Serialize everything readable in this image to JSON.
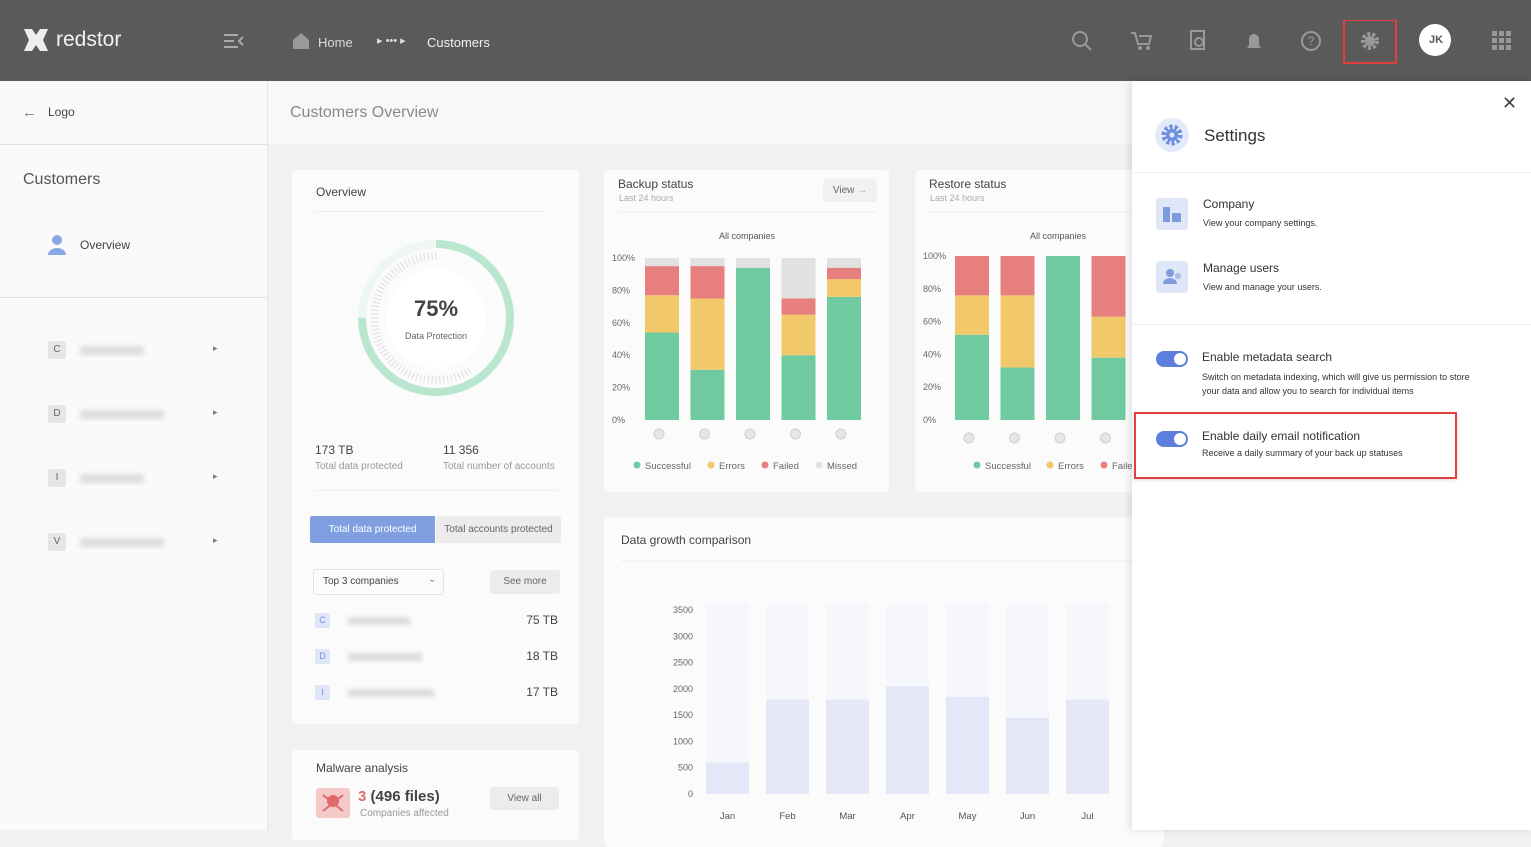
{
  "header": {
    "logo": "redstor",
    "breadcrumb": [
      "Home",
      "Customers"
    ],
    "avatar": "JK"
  },
  "sidebar": {
    "back": "Logo",
    "section": "Customers",
    "nav": "Overview",
    "items": [
      "C",
      "D",
      "I",
      "V"
    ]
  },
  "page_title": "Customers Overview",
  "overview": {
    "title": "Overview",
    "stats": [
      {
        "value": "173 TB",
        "label": "Total data protected"
      },
      {
        "value": "11 356",
        "label": "Total number of accounts"
      }
    ],
    "tabs": [
      "Total data protected",
      "Total accounts protected"
    ],
    "dropdown": "Top 3 companies",
    "see_more": "See more",
    "top": [
      {
        "letter": "C",
        "value": "75 TB"
      },
      {
        "letter": "D",
        "value": "18 TB"
      },
      {
        "letter": "I",
        "value": "17 TB"
      }
    ]
  },
  "malware": {
    "title": "Malware analysis",
    "count": "3",
    "files": "(496 files)",
    "caption": "Companies affected",
    "action": "View all"
  },
  "chart_data": [
    {
      "type": "donut",
      "values": [
        75
      ],
      "value_labels": [
        "75%"
      ],
      "label": "Data Protection",
      "color": "#b9e6cf"
    },
    {
      "type": "stacked-bar",
      "title": "Backup status",
      "subtitle": "Last 24 hours",
      "action": "View",
      "caption": "All companies",
      "categories": [
        null,
        null,
        null,
        null,
        null
      ],
      "series": [
        {
          "name": "Successful",
          "color": "#6fcb9f",
          "values": [
            54,
            31,
            94,
            40,
            76
          ]
        },
        {
          "name": "Errors",
          "color": "#f1c96a",
          "values": [
            23,
            44,
            0,
            25,
            11
          ]
        },
        {
          "name": "Failed",
          "color": "#e77f7f",
          "values": [
            18,
            20,
            0,
            10,
            7
          ]
        },
        {
          "name": "Missed",
          "color": "#e1e1e1",
          "values": [
            5,
            5,
            6,
            25,
            6
          ]
        }
      ],
      "ylim": [
        0,
        100
      ],
      "yticks": [
        {
          "value": 0,
          "label": "0%"
        },
        {
          "value": 20,
          "label": "20%"
        },
        {
          "value": 40,
          "label": "40%"
        },
        {
          "value": 60,
          "label": "60%"
        },
        {
          "value": 80,
          "label": "80%"
        },
        {
          "value": 100,
          "label": "100%"
        }
      ]
    },
    {
      "type": "stacked-bar",
      "title": "Restore status",
      "subtitle": "Last 24 hours",
      "caption": "All companies",
      "categories": [
        null,
        null,
        null,
        null
      ],
      "series": [
        {
          "name": "Successful",
          "color": "#6fcb9f",
          "values": [
            52,
            32,
            100,
            38
          ]
        },
        {
          "name": "Errors",
          "color": "#f1c96a",
          "values": [
            24,
            44,
            0,
            25
          ]
        },
        {
          "name": "Failed",
          "color": "#e77f7f",
          "values": [
            24,
            24,
            0,
            37
          ]
        }
      ],
      "ylim": [
        0,
        100
      ],
      "yticks": [
        {
          "value": 0,
          "label": "0%"
        },
        {
          "value": 20,
          "label": "20%"
        },
        {
          "value": 40,
          "label": "40%"
        },
        {
          "value": 60,
          "label": "60%"
        },
        {
          "value": 80,
          "label": "80%"
        },
        {
          "value": 100,
          "label": "100%"
        }
      ]
    },
    {
      "type": "bar",
      "title": "Data growth comparison",
      "categories": [
        "Jan",
        "Feb",
        "Mar",
        "Apr",
        "May",
        "Jun",
        "Jul"
      ],
      "values": [
        600,
        1800,
        1800,
        2050,
        1850,
        1450,
        1800
      ],
      "color": "#e3e7f7",
      "ylim": [
        0,
        3750
      ],
      "yticks": [
        0,
        500,
        1000,
        1500,
        2000,
        2500,
        3000,
        3500
      ]
    }
  ],
  "settings": {
    "title": "Settings",
    "links": [
      {
        "title": "Company",
        "text": "View your company settings."
      },
      {
        "title": "Manage users",
        "text": "View and manage your users."
      }
    ],
    "toggles": [
      {
        "title": "Enable metadata search",
        "text": "Switch on metadata indexing, which will give us permission to store your data and allow you to search for individual items"
      },
      {
        "title": "Enable daily email notification",
        "text": "Receive a daily summary of your back up statuses"
      }
    ]
  }
}
